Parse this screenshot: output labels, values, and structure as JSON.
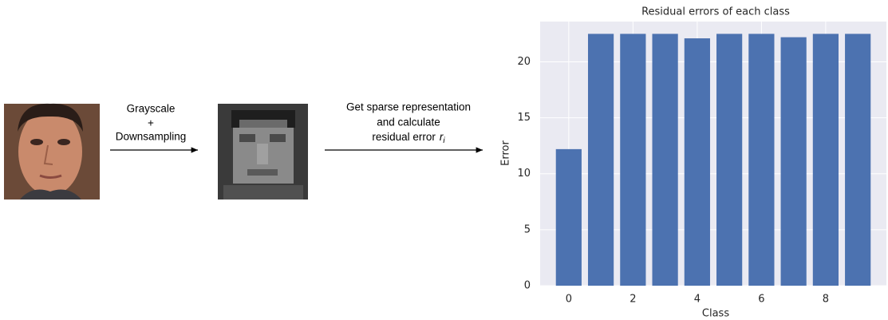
{
  "diagram": {
    "step1": {
      "lines": [
        "Grayscale",
        "+",
        "Downsampling"
      ]
    },
    "step2": {
      "lines": [
        "Get sparse representation",
        "and calculate",
        "residual error"
      ],
      "symbol": "r",
      "subscript": "i"
    }
  },
  "chart_data": {
    "type": "bar",
    "title": "Residual errors of each class",
    "x_label": "Class",
    "y_label": "Error",
    "x": [
      0,
      1,
      2,
      3,
      4,
      5,
      6,
      7,
      8,
      9
    ],
    "values": [
      12.2,
      22.5,
      22.5,
      22.5,
      22.1,
      22.5,
      22.5,
      22.2,
      22.5,
      22.5
    ],
    "color": "#4c72b0",
    "background": "#eaeaf2",
    "grid": true,
    "xlim": [
      -0.89,
      9.89
    ],
    "ylim": [
      0,
      23.6
    ],
    "xticks": [
      0,
      2,
      4,
      6,
      8
    ],
    "yticks": [
      0,
      5,
      10,
      15,
      20
    ]
  }
}
